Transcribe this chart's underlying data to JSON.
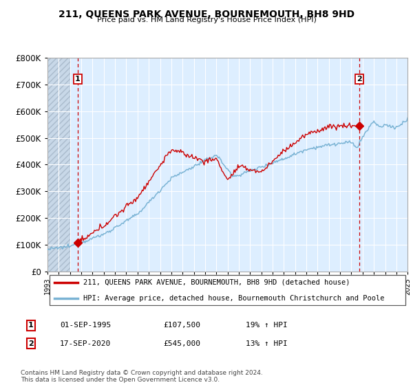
{
  "title": "211, QUEENS PARK AVENUE, BOURNEMOUTH, BH8 9HD",
  "subtitle": "Price paid vs. HM Land Registry's House Price Index (HPI)",
  "ylim": [
    0,
    800000
  ],
  "ytick_labels": [
    "£0",
    "£100K",
    "£200K",
    "£300K",
    "£400K",
    "£500K",
    "£600K",
    "£700K",
    "£800K"
  ],
  "sale1_year": 1995.667,
  "sale1_value": 107500,
  "sale2_year": 2020.708,
  "sale2_value": 545000,
  "line_color_property": "#cc0000",
  "line_color_hpi": "#7ab3d4",
  "background_color": "#ddeeff",
  "hatch_color": "#bbccdd",
  "grid_color": "#ffffff",
  "legend_entry1": "211, QUEENS PARK AVENUE, BOURNEMOUTH, BH8 9HD (detached house)",
  "legend_entry2": "HPI: Average price, detached house, Bournemouth Christchurch and Poole",
  "table_row1": [
    "1",
    "01-SEP-1995",
    "£107,500",
    "19% ↑ HPI"
  ],
  "table_row2": [
    "2",
    "17-SEP-2020",
    "£545,000",
    "13% ↑ HPI"
  ],
  "footnote": "Contains HM Land Registry data © Crown copyright and database right 2024.\nThis data is licensed under the Open Government Licence v3.0.",
  "xstart_year": 1993,
  "xend_year": 2025
}
